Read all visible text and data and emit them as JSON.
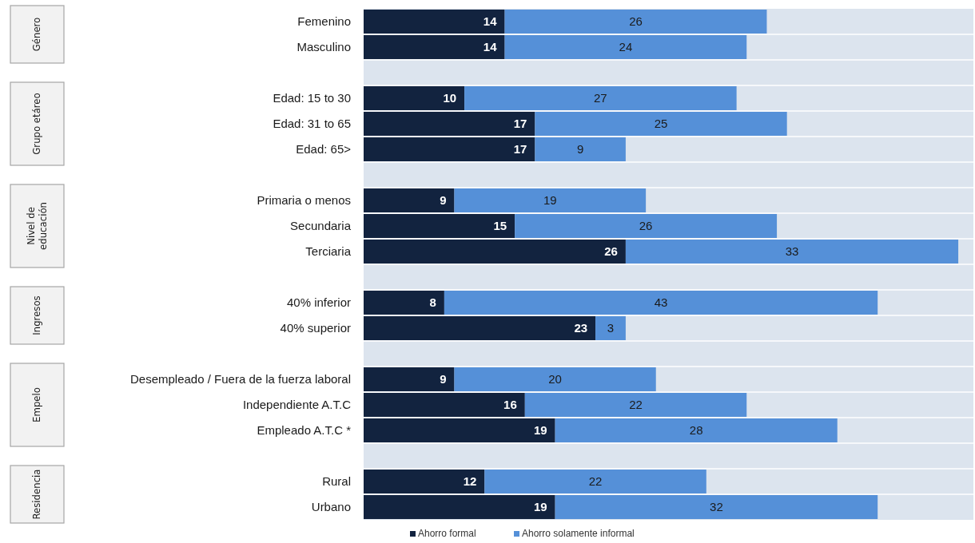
{
  "chart_data": {
    "type": "bar",
    "orientation": "horizontal",
    "stacked": true,
    "data_labels": true,
    "legend": "bottom",
    "xlim": [
      0,
      60.5
    ],
    "categories": [
      "Femenino",
      "Masculino",
      null,
      "Edad: 15 to 30",
      "Edad: 31 to 65",
      "Edad: 65>",
      null,
      "Primaria o menos",
      "Secundaria",
      "Terciaria",
      null,
      "40% inferior",
      "40% superior",
      null,
      "Desempleado / Fuera de la fuerza laboral",
      "Independiente A.T.C",
      "Empleado A.T.C *",
      null,
      "Rural",
      "Urbano"
    ],
    "series": [
      {
        "name": "Ahorro formal",
        "color": "#12233f",
        "values": [
          14,
          14,
          null,
          10,
          17,
          17,
          null,
          9,
          15,
          26,
          null,
          8,
          23,
          null,
          9,
          16,
          19,
          null,
          12,
          19
        ]
      },
      {
        "name": "Ahorro solamente informal",
        "color": "#5590d8",
        "values": [
          26,
          24,
          null,
          27,
          25,
          9,
          null,
          19,
          26,
          33,
          null,
          43,
          3,
          null,
          20,
          22,
          28,
          null,
          22,
          32
        ]
      }
    ],
    "annotations": [
      "Género",
      "Grupo etáreo",
      "Nivel de educación",
      "Ingresos",
      "Empelo",
      "Residencia"
    ]
  }
}
